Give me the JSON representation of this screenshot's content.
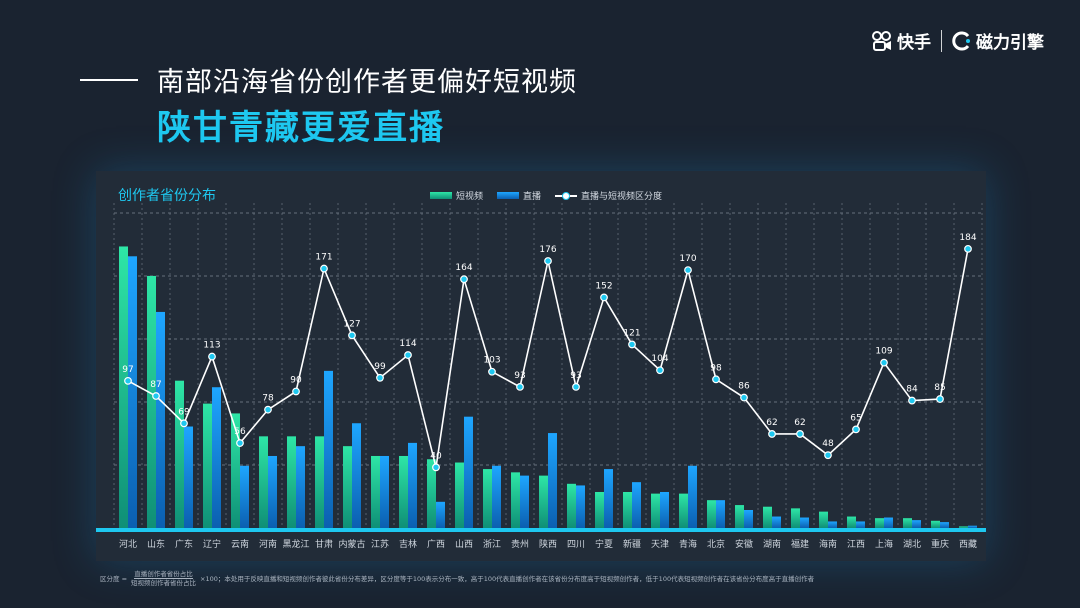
{
  "brand": {
    "primary": "快手",
    "secondary": "磁力引擎"
  },
  "headline": {
    "line1": "南部沿海省份创作者更偏好短视频",
    "line2": "陕甘青藏更爱直播"
  },
  "panel_title": "创作者省份分布",
  "footnote": {
    "prefix": "区分度 =",
    "numerator": "直播创作者省份占比",
    "denominator": "短视频创作者省份占比",
    "suffix": "×100；本处用于反映直播和短视频创作者彼此省份分布差异，区分度等于100表示分布一致，高于100代表直播创作者在该省份分布度高于短视频创作者，低于100代表短视频创作者在该省份分布度高于直播创作者"
  },
  "colors": {
    "short_video_top": "#2ee6a6",
    "short_video_bottom": "#0f8f76",
    "live_top": "#1ea6ff",
    "live_bottom": "#0b5fb0",
    "line": "#ffffff",
    "marker": "#1ec8f0",
    "baseline": "#1ec8f0"
  },
  "chart_data": {
    "type": "bar",
    "categories": [
      "河北",
      "山东",
      "广东",
      "辽宁",
      "云南",
      "河南",
      "黑龙江",
      "甘肃",
      "内蒙古",
      "江苏",
      "吉林",
      "广西",
      "山西",
      "浙江",
      "贵州",
      "陕西",
      "四川",
      "宁夏",
      "新疆",
      "天津",
      "青海",
      "北京",
      "安徽",
      "湖南",
      "福建",
      "海南",
      "江西",
      "上海",
      "湖北",
      "重庆",
      "西藏"
    ],
    "series": [
      {
        "name": "短视频",
        "type": "bar",
        "values": [
          8.6,
          7.7,
          4.5,
          3.8,
          3.5,
          2.8,
          2.8,
          2.8,
          2.5,
          2.2,
          2.2,
          2.1,
          2.0,
          1.8,
          1.7,
          1.6,
          1.35,
          1.1,
          1.1,
          1.05,
          1.05,
          0.85,
          0.7,
          0.65,
          0.6,
          0.5,
          0.35,
          0.3,
          0.3,
          0.22,
          0.05
        ]
      },
      {
        "name": "直播",
        "type": "bar",
        "values": [
          8.3,
          6.6,
          3.1,
          4.3,
          1.9,
          2.2,
          2.5,
          4.8,
          3.2,
          2.2,
          2.6,
          0.8,
          3.4,
          1.9,
          1.6,
          2.9,
          1.3,
          1.8,
          1.4,
          1.1,
          1.9,
          0.85,
          0.55,
          0.35,
          0.32,
          0.2,
          0.2,
          0.32,
          0.24,
          0.18,
          0.07
        ]
      },
      {
        "name": "直播与短视频区分度",
        "type": "line",
        "values": [
          97,
          87,
          69,
          113,
          56,
          78,
          90,
          171,
          127,
          99,
          114,
          40,
          164,
          103,
          93,
          176,
          93,
          152,
          121,
          104,
          170,
          98,
          86,
          62,
          62,
          48,
          65,
          109,
          84,
          85,
          184
        ]
      }
    ],
    "legend_position": "top-center",
    "grid": true
  }
}
